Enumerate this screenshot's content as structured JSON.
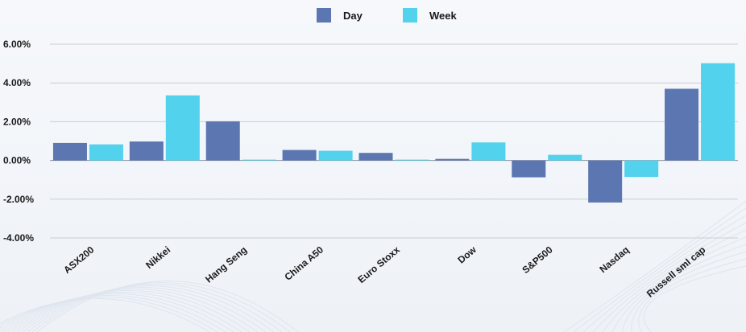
{
  "chart_data": {
    "type": "bar",
    "categories": [
      "ASX200",
      "Nikkei",
      "Hang Seng",
      "China A50",
      "Euro Stoxx",
      "Dow",
      "S&P500",
      "Nasdaq",
      "Russell sml cap"
    ],
    "series": [
      {
        "name": "Day",
        "color": "#5b76b0",
        "values": [
          0.9,
          0.98,
          2.02,
          0.54,
          0.39,
          0.08,
          -0.87,
          -2.17,
          3.7
        ]
      },
      {
        "name": "Week",
        "color": "#52d2ec",
        "values": [
          0.83,
          3.36,
          0.03,
          0.5,
          0.0,
          0.93,
          0.29,
          -0.85,
          5.02
        ]
      }
    ],
    "yticks": [
      -4,
      -2,
      0,
      2,
      4,
      6
    ],
    "ytick_labels": [
      "-4.00%",
      "-2.00%",
      "0.00%",
      "2.00%",
      "4.00%",
      "6.00%"
    ],
    "ylim": [
      -4,
      6
    ],
    "grid": true,
    "legend_position": "top-center",
    "xlabel": "",
    "ylabel": "",
    "title": ""
  }
}
